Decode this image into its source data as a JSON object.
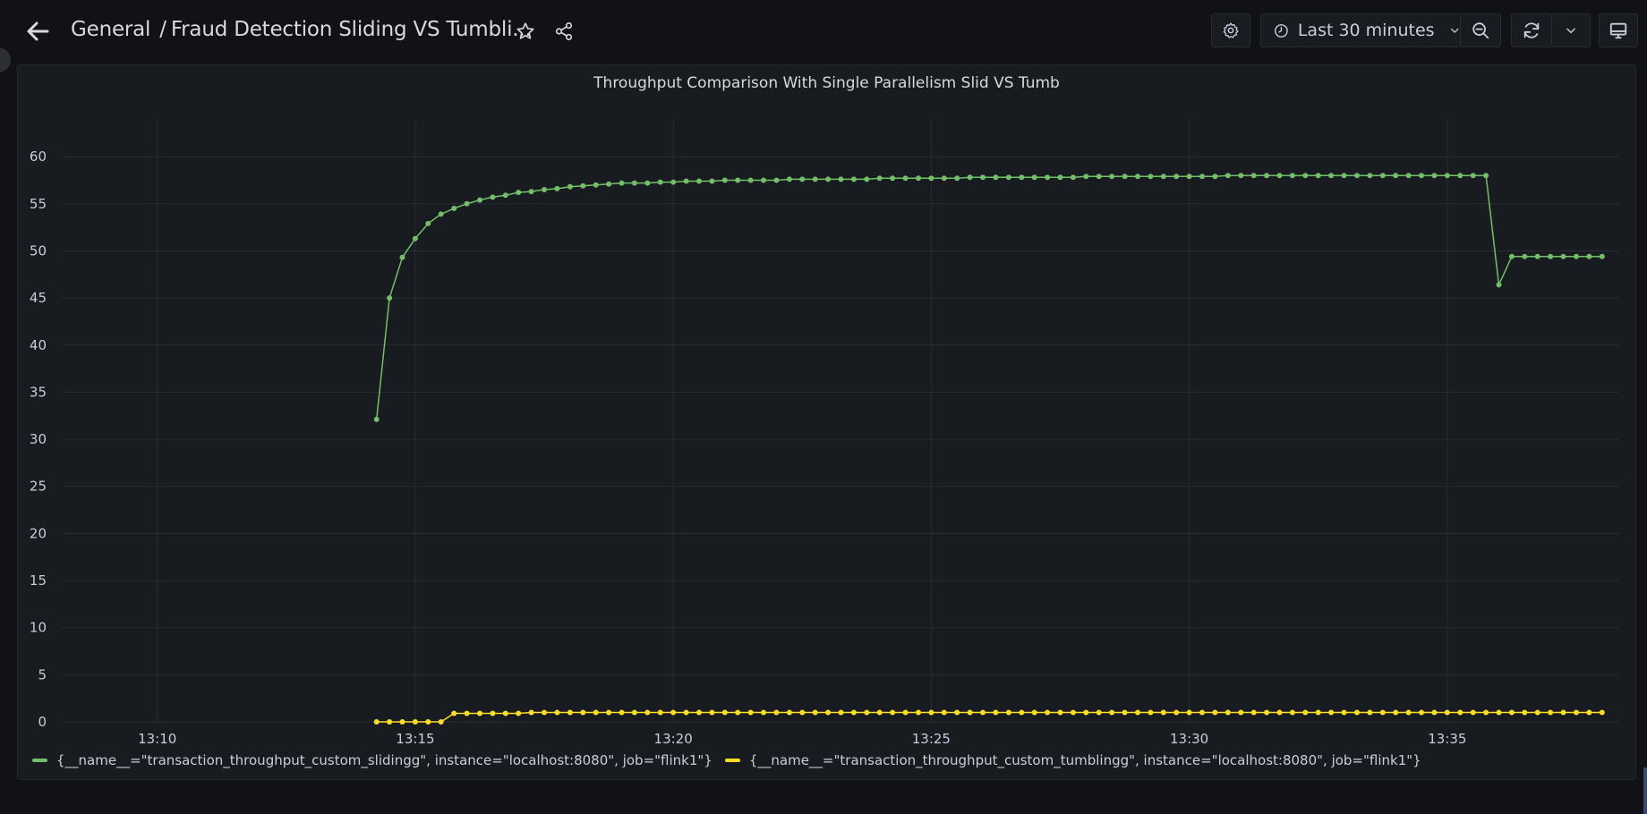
{
  "header": {
    "breadcrumb_folder": "General",
    "separator": "/",
    "dashboard_title": "Fraud Detection Sliding VS Tumbli...",
    "time_range_label": "Last 30 minutes"
  },
  "icons": {
    "back": "arrow-left-icon",
    "star": "star-icon",
    "share": "share-icon",
    "settings": "gear-icon",
    "clock": "clock-icon",
    "zoom_out": "zoom-out-icon",
    "refresh": "refresh-icon",
    "dropdown": "chevron-down-icon",
    "tv": "tv-icon"
  },
  "colors": {
    "background": "#111217",
    "panel": "#181b1f",
    "series_sliding": "#73bf69",
    "series_tumbling": "#fade2a"
  },
  "panel": {
    "title": "Throughput Comparison With Single Parallelism Slid VS Tumb"
  },
  "chart_data": {
    "type": "line",
    "title": "Throughput Comparison With Single Parallelism Slid VS Tumb",
    "xlabel": "",
    "ylabel": "",
    "x_ticks": [
      "13:10",
      "13:15",
      "13:20",
      "13:25",
      "13:30",
      "13:35"
    ],
    "y_ticks": [
      0,
      5,
      10,
      15,
      20,
      25,
      30,
      35,
      40,
      45,
      50,
      55,
      60
    ],
    "xlim": [
      "13:08:10",
      "13:38:20"
    ],
    "ylim": [
      0,
      64
    ],
    "grid": true,
    "legend_position": "bottom-left",
    "sample_interval_seconds": 15,
    "series": [
      {
        "name": "{__name__=\"transaction_throughput_custom_slidingg\", instance=\"localhost:8080\", job=\"flink1\"}",
        "color": "#73bf69",
        "start_time": "13:14:15",
        "values": [
          32.1,
          45.0,
          49.3,
          51.3,
          52.9,
          53.9,
          54.5,
          55.0,
          55.4,
          55.7,
          55.9,
          56.2,
          56.3,
          56.5,
          56.6,
          56.8,
          56.9,
          57.0,
          57.1,
          57.2,
          57.2,
          57.2,
          57.3,
          57.3,
          57.4,
          57.4,
          57.4,
          57.5,
          57.5,
          57.5,
          57.5,
          57.5,
          57.6,
          57.6,
          57.6,
          57.6,
          57.6,
          57.6,
          57.6,
          57.7,
          57.7,
          57.7,
          57.7,
          57.7,
          57.7,
          57.7,
          57.8,
          57.8,
          57.8,
          57.8,
          57.8,
          57.8,
          57.8,
          57.8,
          57.8,
          57.9,
          57.9,
          57.9,
          57.9,
          57.9,
          57.9,
          57.9,
          57.9,
          57.9,
          57.9,
          57.9,
          58.0,
          58.0,
          58.0,
          58.0,
          58.0,
          58.0,
          58.0,
          58.0,
          58.0,
          58.0,
          58.0,
          58.0,
          58.0,
          58.0,
          58.0,
          58.0,
          58.0,
          58.0,
          58.0,
          58.0,
          58.0,
          46.4,
          49.4,
          49.4,
          49.4,
          49.4,
          49.4,
          49.4,
          49.4,
          49.4
        ]
      },
      {
        "name": "{__name__=\"transaction_throughput_custom_tumblingg\", instance=\"localhost:8080\", job=\"flink1\"}",
        "color": "#fade2a",
        "start_time": "13:14:15",
        "values": [
          0,
          0,
          0,
          0,
          0,
          0,
          0.9,
          0.9,
          0.9,
          0.9,
          0.9,
          0.9,
          1,
          1,
          1,
          1,
          1,
          1,
          1,
          1,
          1,
          1,
          1,
          1,
          1,
          1,
          1,
          1,
          1,
          1,
          1,
          1,
          1,
          1,
          1,
          1,
          1,
          1,
          1,
          1,
          1,
          1,
          1,
          1,
          1,
          1,
          1,
          1,
          1,
          1,
          1,
          1,
          1,
          1,
          1,
          1,
          1,
          1,
          1,
          1,
          1,
          1,
          1,
          1,
          1,
          1,
          1,
          1,
          1,
          1,
          1,
          1,
          1,
          1,
          1,
          1,
          1,
          1,
          1,
          1,
          1,
          1,
          1,
          1,
          1,
          1,
          1,
          1,
          1,
          1,
          1,
          1,
          1,
          1,
          1,
          1
        ]
      }
    ]
  },
  "legend": {
    "items": [
      {
        "label": "{__name__=\"transaction_throughput_custom_slidingg\", instance=\"localhost:8080\", job=\"flink1\"}",
        "color": "#73bf69"
      },
      {
        "label": "{__name__=\"transaction_throughput_custom_tumblingg\", instance=\"localhost:8080\", job=\"flink1\"}",
        "color": "#fade2a"
      }
    ]
  }
}
